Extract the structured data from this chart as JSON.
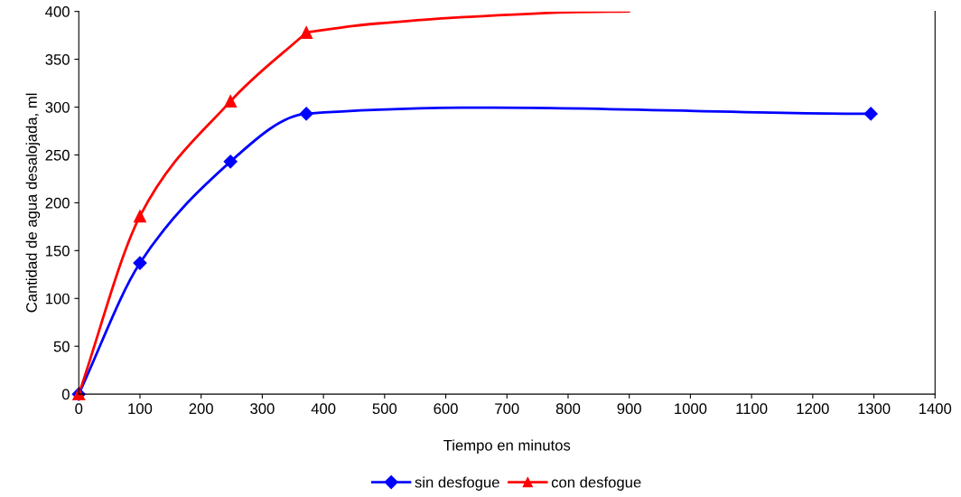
{
  "chart_data": {
    "type": "line",
    "xlabel": "Tiempo en minutos",
    "ylabel": "Cantidad de agua desalojada, ml",
    "xlim": [
      0,
      1400
    ],
    "ylim": [
      0,
      400
    ],
    "xticks": [
      0,
      100,
      200,
      300,
      400,
      500,
      600,
      700,
      800,
      900,
      1000,
      1100,
      1200,
      1300,
      1400
    ],
    "yticks": [
      0,
      50,
      100,
      150,
      200,
      250,
      300,
      350,
      400
    ],
    "grid": false,
    "legend": "bottom",
    "line_style": "solid",
    "series": [
      {
        "name": "sin desfogue",
        "color": "#0000ff",
        "marker": "diamond",
        "x": [
          0,
          100,
          248,
          372,
          1295
        ],
        "values": [
          0,
          137,
          243,
          293,
          293
        ]
      },
      {
        "name": "con desfogue",
        "color": "#ff0000",
        "marker": "triangle",
        "x": [
          0,
          100,
          248,
          372
        ],
        "values": [
          0,
          186,
          306,
          378
        ]
      },
      {
        "color": "#ff0000",
        "marker": "none",
        "x": [
          372,
          450,
          500,
          600,
          720,
          800,
          900
        ],
        "values": [
          378,
          385,
          388,
          393,
          397,
          399,
          400
        ]
      }
    ]
  }
}
